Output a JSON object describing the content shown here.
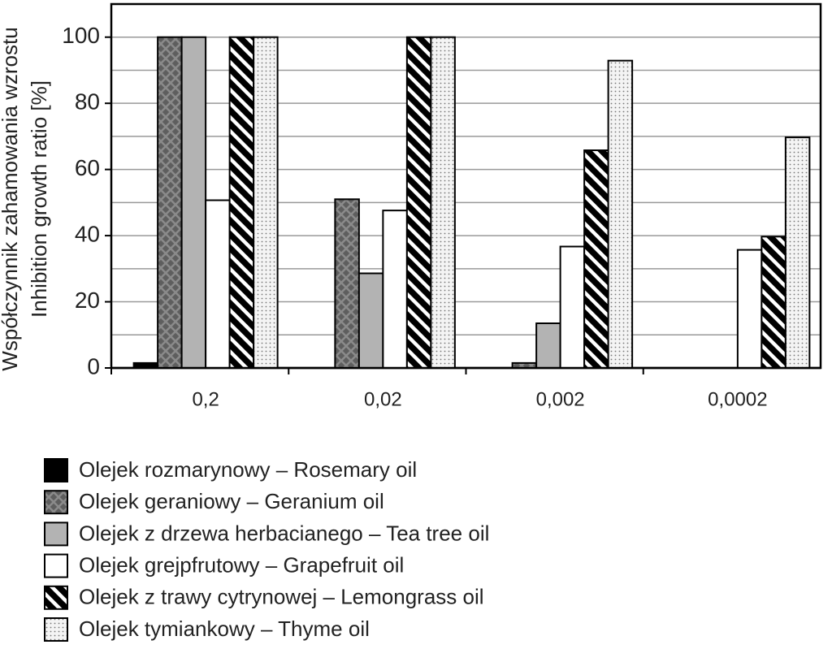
{
  "chart_data": {
    "type": "bar",
    "ylabel": [
      "Współczynnik zahamowania wzrostu",
      "Inhibition growth ratio [%]"
    ],
    "categories": [
      "0,2",
      "0,02",
      "0,002",
      "0,0002"
    ],
    "series": [
      {
        "name": "Olejek rozmarynowy – Rosemary oil",
        "color": "#000000",
        "pattern": "solid",
        "values": [
          1.5,
          0,
          0,
          0
        ]
      },
      {
        "name": "Olejek geraniowy – Geranium oil",
        "color": "#5e5e5e",
        "pattern": "crosshatch",
        "values": [
          100,
          51,
          1.5,
          0
        ]
      },
      {
        "name": "Olejek z drzewa herbacianego – Tea tree oil",
        "color": "#b3b3b3",
        "pattern": "solid",
        "values": [
          100,
          28.6,
          13.5,
          0
        ]
      },
      {
        "name": "Olejek grejpfrutowy – Grapefruit oil",
        "color": "#ffffff",
        "pattern": "solid",
        "values": [
          50.7,
          47.6,
          36.7,
          35.7
        ]
      },
      {
        "name": "Olejek z trawy cytrynowej – Lemongrass oil",
        "color": "#000000",
        "pattern": "stripes",
        "values": [
          100,
          100,
          65.8,
          39.7
        ]
      },
      {
        "name": "Olejek tymiankowy – Thyme oil",
        "color": "#eeeeee",
        "pattern": "dots",
        "values": [
          100,
          100,
          92.9,
          69.7
        ]
      }
    ],
    "ylim": [
      0,
      110
    ],
    "yticks": [
      0,
      20,
      40,
      60,
      80,
      100
    ],
    "minor_yticks": [
      10,
      30,
      50,
      70,
      90
    ],
    "grid": true
  }
}
